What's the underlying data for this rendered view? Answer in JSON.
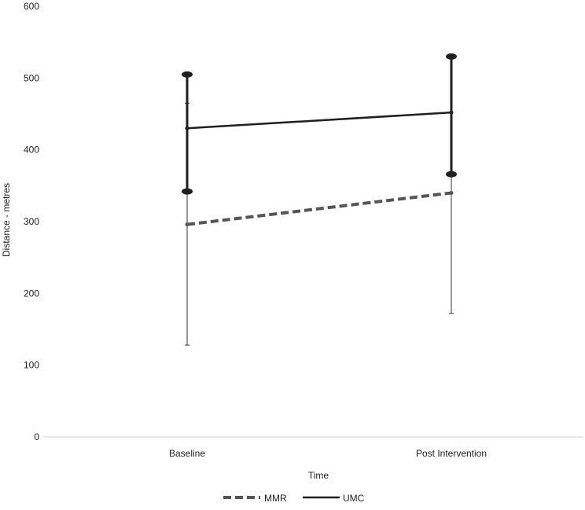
{
  "chart_data": {
    "type": "line",
    "title": "",
    "xlabel": "Time",
    "ylabel": "Distance - metres",
    "categories": [
      "Baseline",
      "Post Intervention"
    ],
    "ylim": [
      0,
      600
    ],
    "yticks": [
      0,
      100,
      200,
      300,
      400,
      500,
      600
    ],
    "grid": false,
    "legend_position": "bottom",
    "series": [
      {
        "name": "MMR",
        "style": "dashed",
        "color": "#555555",
        "values": [
          296,
          340
        ],
        "error_lower": [
          128,
          172
        ],
        "error_upper": [
          465,
          528
        ]
      },
      {
        "name": "UMC",
        "style": "solid",
        "color": "#1f1f1f",
        "values": [
          430,
          452
        ],
        "error_lower": [
          342,
          366
        ],
        "error_upper": [
          505,
          530
        ]
      }
    ]
  }
}
